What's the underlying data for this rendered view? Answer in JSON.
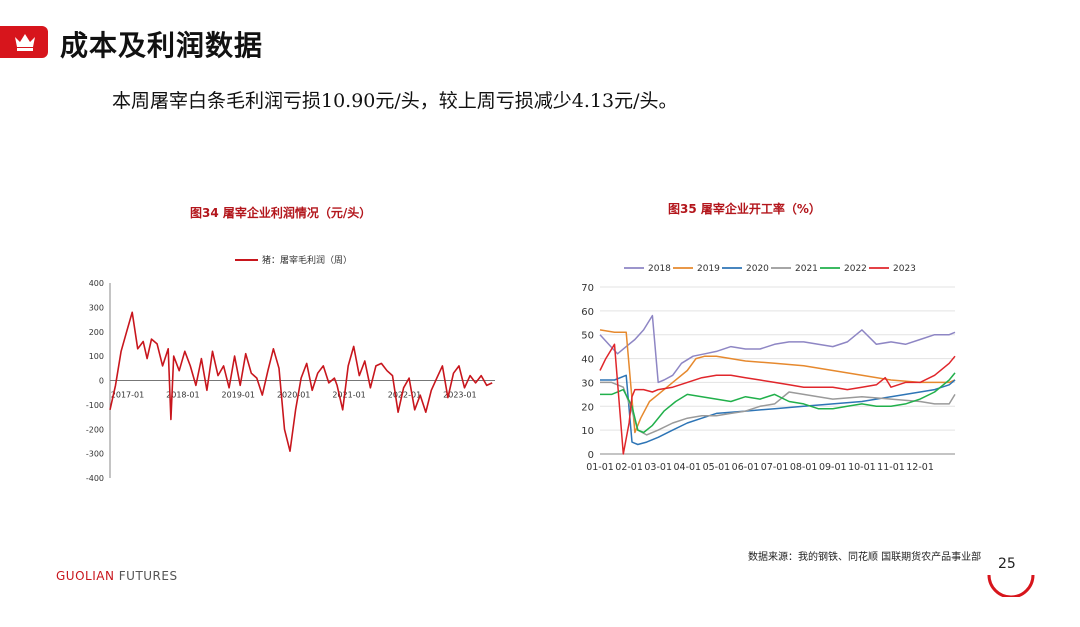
{
  "header": {
    "title": "成本及利润数据",
    "summary": "本周屠宰白条毛利润亏损10.90元/头，较上周亏损减少4.13元/头。",
    "accent_color": "#d7151c",
    "icon": "crown-icon"
  },
  "footer": {
    "source": "数据来源：我的钢铁、同花顺  国联期货农产品事业部",
    "logo_a": "GUOLIAN",
    "logo_b": " FUTURES",
    "page_number": "25"
  },
  "chart_data": [
    {
      "type": "line",
      "title": "图34  屠宰企业利润情况（元/头）",
      "legend": {
        "placement": "top",
        "entries": [
          "猪：屠宰毛利润（周）"
        ]
      },
      "series": [
        {
          "name": "猪：屠宰毛利润（周）",
          "color": "#c8161d",
          "x": [
            2016.95,
            2017.05,
            2017.15,
            2017.25,
            2017.35,
            2017.45,
            2017.55,
            2017.62,
            2017.7,
            2017.8,
            2017.9,
            2018.0,
            2018.05,
            2018.1,
            2018.2,
            2018.3,
            2018.4,
            2018.5,
            2018.6,
            2018.7,
            2018.8,
            2018.9,
            2019.0,
            2019.1,
            2019.2,
            2019.3,
            2019.4,
            2019.5,
            2019.6,
            2019.7,
            2019.8,
            2019.9,
            2020.0,
            2020.1,
            2020.2,
            2020.3,
            2020.4,
            2020.5,
            2020.6,
            2020.7,
            2020.8,
            2020.9,
            2021.0,
            2021.05,
            2021.15,
            2021.25,
            2021.35,
            2021.45,
            2021.55,
            2021.65,
            2021.75,
            2021.85,
            2021.95,
            2022.05,
            2022.15,
            2022.25,
            2022.35,
            2022.45,
            2022.55,
            2022.65,
            2022.75,
            2022.85,
            2022.95,
            2023.05,
            2023.15,
            2023.25,
            2023.35,
            2023.45,
            2023.55,
            2023.65,
            2023.75,
            2023.85
          ],
          "values": [
            -120,
            -20,
            120,
            200,
            280,
            130,
            160,
            90,
            170,
            150,
            60,
            130,
            -160,
            100,
            40,
            120,
            60,
            -20,
            90,
            -40,
            120,
            20,
            60,
            -30,
            100,
            -20,
            110,
            30,
            10,
            -60,
            40,
            130,
            50,
            -200,
            -290,
            -120,
            10,
            70,
            -40,
            30,
            60,
            -10,
            10,
            -20,
            -120,
            60,
            140,
            20,
            80,
            -30,
            60,
            70,
            40,
            20,
            -130,
            -30,
            10,
            -120,
            -60,
            -130,
            -40,
            10,
            60,
            -70,
            30,
            60,
            -30,
            20,
            -10,
            20,
            -20,
            -10
          ]
        }
      ],
      "xticks": [
        "2017-01",
        "2018-01",
        "2019-01",
        "2020-01",
        "2021-01",
        "2022-01",
        "2023-01"
      ],
      "yticks": [
        -400,
        -300,
        -200,
        -100,
        0,
        100,
        200,
        300,
        400
      ],
      "ylim": [
        -400,
        400
      ],
      "xlim": [
        2016.95,
        2023.9
      ],
      "grid": false
    },
    {
      "type": "line",
      "title": "图35  屠宰企业开工率（%）",
      "legend": {
        "placement": "top",
        "entries": [
          "2018",
          "2019",
          "2020",
          "2021",
          "2022",
          "2023"
        ]
      },
      "categories": [
        "01-01",
        "02-01",
        "03-01",
        "04-01",
        "05-01",
        "06-01",
        "07-01",
        "08-01",
        "09-01",
        "10-01",
        "11-01",
        "12-01"
      ],
      "x_range": [
        0,
        12.2
      ],
      "ylim": [
        0,
        70
      ],
      "yticks": [
        0,
        10,
        20,
        30,
        40,
        50,
        60,
        70
      ],
      "grid": true,
      "series": [
        {
          "name": "2018",
          "color": "#8e86c4",
          "x": [
            0,
            0.3,
            0.6,
            0.9,
            1.2,
            1.5,
            1.8,
            2.0,
            2.2,
            2.5,
            2.8,
            3.2,
            3.6,
            4.0,
            4.5,
            5.0,
            5.5,
            6.0,
            6.5,
            7.0,
            7.5,
            8.0,
            8.5,
            9.0,
            9.5,
            10.0,
            10.5,
            11.0,
            11.5,
            12.0,
            12.2
          ],
          "values": [
            50,
            46,
            42,
            45,
            48,
            52,
            58,
            30,
            31,
            33,
            38,
            41,
            42,
            43,
            45,
            44,
            44,
            46,
            47,
            47,
            46,
            45,
            47,
            52,
            46,
            47,
            46,
            48,
            50,
            50,
            51
          ]
        },
        {
          "name": "2019",
          "color": "#e6892e",
          "x": [
            0,
            0.5,
            0.9,
            1.2,
            1.4,
            1.7,
            2.0,
            2.5,
            3.0,
            3.3,
            3.6,
            4.0,
            5.0,
            6.0,
            7.0,
            8.0,
            9.0,
            10.0,
            11.0,
            12.0,
            12.2
          ],
          "values": [
            52,
            51,
            51,
            9,
            15,
            22,
            25,
            30,
            35,
            40,
            41,
            41,
            39,
            38,
            37,
            35,
            33,
            31,
            30,
            30,
            31
          ]
        },
        {
          "name": "2020",
          "color": "#2e75b6",
          "x": [
            0,
            0.5,
            0.9,
            1.1,
            1.3,
            1.6,
            2.0,
            2.5,
            3.0,
            3.5,
            4.0,
            5.0,
            6.0,
            7.0,
            8.0,
            9.0,
            10.0,
            11.0,
            11.5,
            12.0,
            12.2
          ],
          "values": [
            31,
            31,
            33,
            5,
            4,
            5,
            7,
            10,
            13,
            15,
            17,
            18,
            19,
            20,
            21,
            22,
            24,
            26,
            27,
            29,
            31
          ]
        },
        {
          "name": "2021",
          "color": "#9a9a9a",
          "x": [
            0,
            0.4,
            0.8,
            1.1,
            1.3,
            1.6,
            2.0,
            2.5,
            3.0,
            3.5,
            4.0,
            4.5,
            5.0,
            5.5,
            6.0,
            6.5,
            7.0,
            7.5,
            8.0,
            9.0,
            10.0,
            11.0,
            11.5,
            12.0,
            12.2
          ],
          "values": [
            30,
            30,
            28,
            18,
            10,
            8,
            10,
            13,
            15,
            16,
            16,
            17,
            18,
            20,
            21,
            26,
            25,
            24,
            23,
            24,
            23,
            22,
            21,
            21,
            25
          ]
        },
        {
          "name": "2022",
          "color": "#21b04b",
          "x": [
            0,
            0.4,
            0.8,
            1.1,
            1.3,
            1.5,
            1.8,
            2.2,
            2.6,
            3.0,
            3.5,
            4.0,
            4.5,
            5.0,
            5.5,
            6.0,
            6.5,
            7.0,
            7.5,
            8.0,
            8.5,
            9.0,
            9.5,
            10.0,
            10.5,
            11.0,
            11.5,
            12.0,
            12.2
          ],
          "values": [
            25,
            25,
            27,
            20,
            10,
            9,
            12,
            18,
            22,
            25,
            24,
            23,
            22,
            24,
            23,
            25,
            22,
            21,
            19,
            19,
            20,
            21,
            20,
            20,
            21,
            23,
            26,
            31,
            34
          ]
        },
        {
          "name": "2023",
          "color": "#e0262b",
          "x": [
            0,
            0.2,
            0.5,
            0.8,
            1.0,
            1.1,
            1.2,
            1.5,
            1.8,
            2.0,
            2.5,
            3.0,
            3.5,
            4.0,
            4.5,
            5.0,
            5.5,
            6.0,
            6.5,
            7.0,
            7.5,
            8.0,
            8.5,
            9.0,
            9.5,
            9.8,
            10.0,
            10.5,
            11.0,
            11.5,
            12.0,
            12.2
          ],
          "values": [
            35,
            40,
            46,
            0,
            13,
            24,
            27,
            27,
            26,
            27,
            28,
            30,
            32,
            33,
            33,
            32,
            31,
            30,
            29,
            28,
            28,
            28,
            27,
            28,
            29,
            32,
            28,
            30,
            30,
            33,
            38,
            41
          ]
        }
      ]
    }
  ]
}
